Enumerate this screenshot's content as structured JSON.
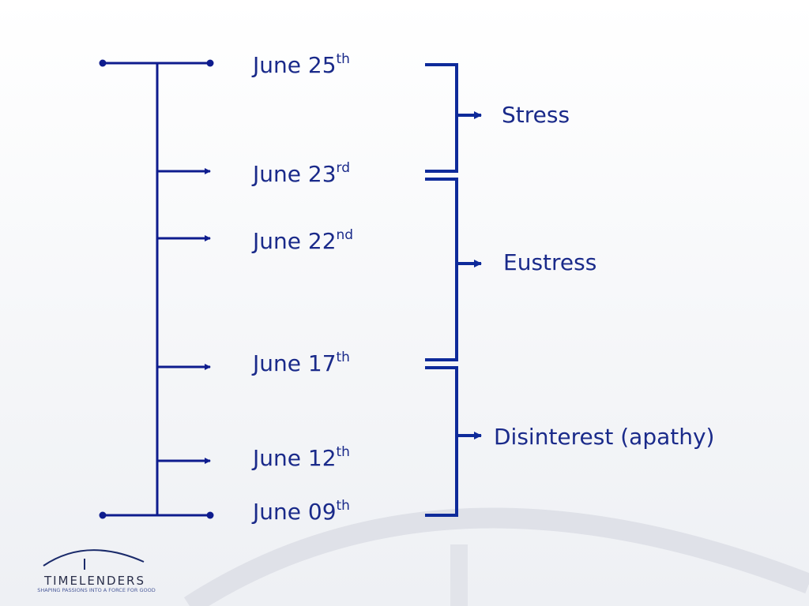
{
  "dates": [
    {
      "main": "June 25",
      "sup": "th"
    },
    {
      "main": "June 23",
      "sup": "rd"
    },
    {
      "main": "June 22",
      "sup": "nd"
    },
    {
      "main": "June 17",
      "sup": "th"
    },
    {
      "main": "June 12",
      "sup": "th"
    },
    {
      "main": "June 09",
      "sup": "th"
    }
  ],
  "phases": [
    "Stress",
    "Eustress",
    "Disinterest (apathy)"
  ],
  "logo": {
    "name": "TIMELENDERS",
    "tagline": "SHAPING PASSIONS INTO A FORCE FOR GOOD"
  }
}
